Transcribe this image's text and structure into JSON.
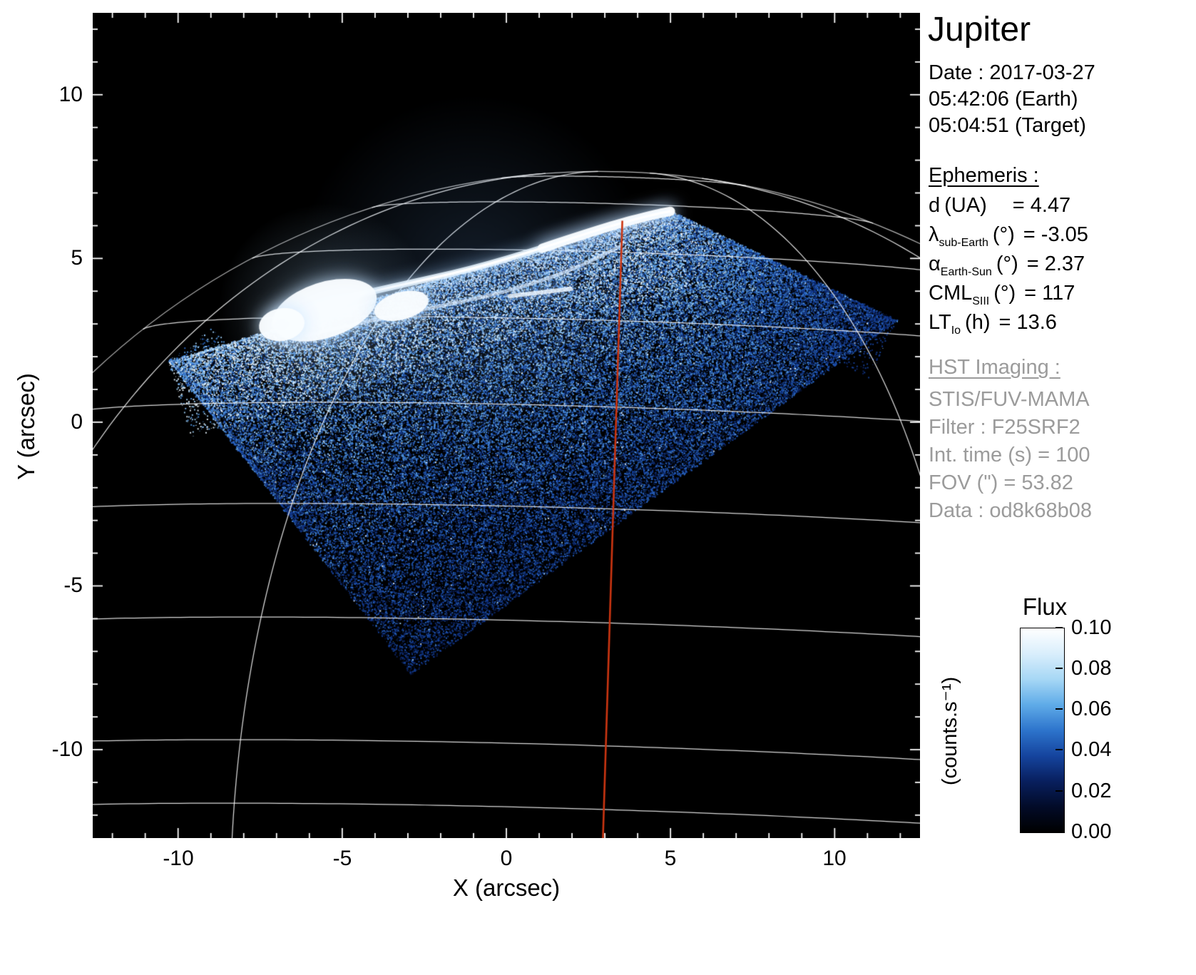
{
  "title": "Jupiter",
  "observation": {
    "date_line": "Date : 2017-03-27",
    "time_earth": "05:42:06 (Earth)",
    "time_target": "05:04:51 (Target)"
  },
  "ephemeris": {
    "heading": "Ephemeris :",
    "rows": [
      {
        "symbol": "d",
        "sub": "",
        "unit": "(UA)",
        "value": "= 4.47"
      },
      {
        "symbol": "λ",
        "sub": "sub-Earth",
        "unit": "(°)",
        "value": "= -3.05"
      },
      {
        "symbol": "α",
        "sub": "Earth-Sun",
        "unit": "(°)",
        "value": "= 2.37"
      },
      {
        "symbol": "CML",
        "sub": "SIII",
        "unit": "(°)",
        "value": "= 117"
      },
      {
        "symbol": "LT",
        "sub": "Io",
        "unit": "(h)",
        "value": "= 13.6"
      }
    ]
  },
  "hst": {
    "heading": "HST Imaging :",
    "rows": [
      "STIS/FUV-MAMA",
      "Filter : F25SRF2",
      "Int. time (s) = 100",
      "FOV (\") = 53.82",
      "Data : od8k68b08"
    ]
  },
  "colorbar": {
    "title": "Flux",
    "unit": "(counts.s⁻¹)",
    "ticks": [
      "0.10",
      "0.08",
      "0.06",
      "0.04",
      "0.02",
      "0.00"
    ],
    "gradient": [
      "#ffffff",
      "#d9eefc",
      "#a6d7f5",
      "#5fabe8",
      "#2d74cc",
      "#15449e",
      "#081f5e",
      "#020b28",
      "#000000"
    ]
  },
  "axes": {
    "xlabel": "X (arcsec)",
    "ylabel": "Y (arcsec)",
    "xticks": [
      "-10",
      "-5",
      "0",
      "5",
      "10"
    ],
    "yticks": [
      "10",
      "5",
      "0",
      "-5",
      "-10"
    ]
  },
  "chart_data": {
    "type": "heatmap",
    "title": "Jupiter",
    "xlabel": "X (arcsec)",
    "ylabel": "Y (arcsec)",
    "xlim": [
      -12.6,
      12.6
    ],
    "ylim": [
      -12.7,
      12.5
    ],
    "xticks": [
      -10,
      -5,
      0,
      5,
      10
    ],
    "yticks": [
      10,
      5,
      0,
      -5,
      -10
    ],
    "flux_ticks": [
      0.1,
      0.08,
      0.06,
      0.04,
      0.02,
      0.0
    ],
    "flux_range_counts_per_s": [
      0.0,
      0.1
    ],
    "description": "HST/STIS far-UV image of Jupiter's north polar aurora on the sky plane: rotated-square detector field filled with blue photon-noise speckle, bright white main auroral oval arc along its upper edge, white planetary latitude-longitude graticule over the disk, and a red line marking the central meridian (CML = 117° SIII).",
    "scene": {
      "background": "#000000",
      "graticule_color": "#ffffff",
      "cml_color": "#cb3511",
      "planet": {
        "center": [
          2.87,
          -15.0
        ],
        "radius": 22.6,
        "subearth_lat_deg": -3.05,
        "rotation_deg": 1.8
      },
      "lat_lines_deg": [
        5,
        10,
        20,
        30,
        40,
        50,
        60,
        70,
        80
      ],
      "lon_lines_deg": [
        -90,
        -60,
        -30,
        30,
        60,
        90
      ],
      "cml": {
        "lon_deg": 0,
        "lat_range_deg": [
          2,
          66
        ]
      },
      "detector_quad": [
        [
          -10.32,
          1.89
        ],
        [
          4.89,
          6.53
        ],
        [
          11.91,
          3.13
        ],
        [
          -2.93,
          -7.7
        ]
      ],
      "noise_palette": [
        "#060f2e",
        "#0c2566",
        "#15409a",
        "#2a67c6",
        "#549ae6",
        "#9ccdf4",
        "#eaf6ff"
      ],
      "aurora": {
        "main_arc": [
          [
            -6.95,
            2.98
          ],
          [
            -5.21,
            3.74
          ],
          [
            -3.26,
            4.18
          ],
          [
            -1.09,
            4.66
          ],
          [
            1.09,
            5.31
          ],
          [
            3.04,
            5.96
          ],
          [
            4.56,
            6.36
          ],
          [
            5.0,
            6.44
          ]
        ],
        "secondary_arc": [
          [
            -6.08,
            2.65
          ],
          [
            -3.26,
            3.31
          ],
          [
            -0.43,
            3.85
          ],
          [
            1.96,
            4.61
          ],
          [
            3.48,
            5.38
          ]
        ],
        "spur": [
          [
            0.11,
            3.85
          ],
          [
            1.96,
            4.07
          ]
        ],
        "blobs": [
          {
            "center": [
              -5.54,
              3.42
            ],
            "rx": 1.65,
            "ry": 0.85,
            "angle_deg": -18
          },
          {
            "center": [
              -6.84,
              2.98
            ],
            "rx": 0.7,
            "ry": 0.5,
            "angle_deg": -10
          },
          {
            "center": [
              -3.2,
              3.55
            ],
            "rx": 0.85,
            "ry": 0.42,
            "angle_deg": -15
          }
        ]
      }
    }
  }
}
